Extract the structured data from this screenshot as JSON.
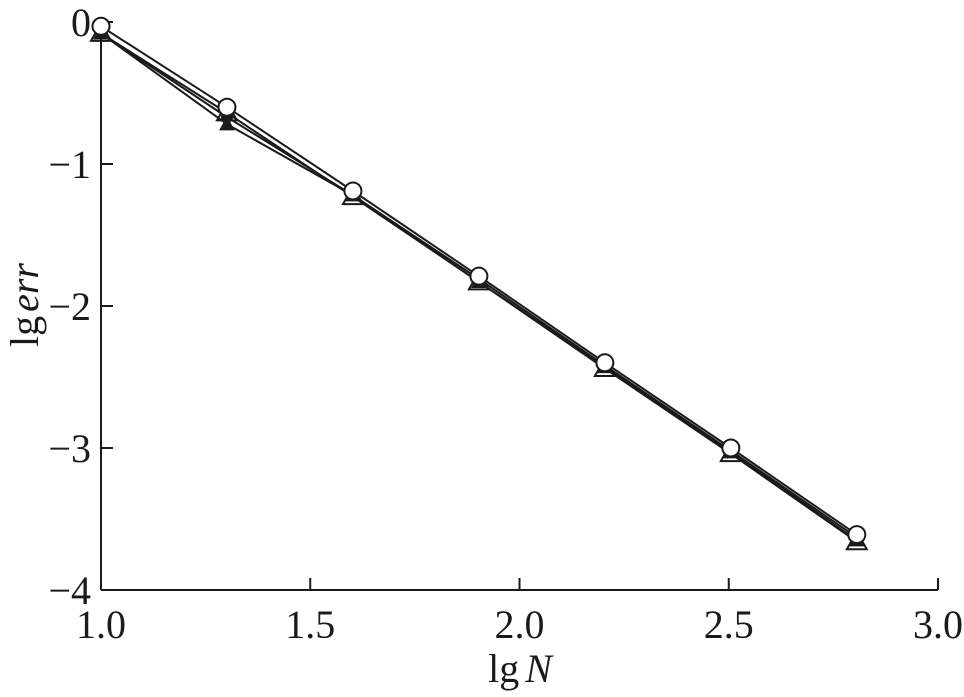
{
  "chart_data": {
    "type": "line",
    "title": "",
    "xlabel": {
      "prefix": "lg",
      "var": "N"
    },
    "ylabel": {
      "prefix": "lg",
      "var": "err"
    },
    "xlim": [
      1.0,
      3.0
    ],
    "ylim": [
      -4,
      0
    ],
    "xticks": [
      1.0,
      1.5,
      2.0,
      2.5,
      3.0
    ],
    "xtick_labels": [
      "1.0",
      "1.5",
      "2.0",
      "2.5",
      "3.0"
    ],
    "yticks": [
      0,
      -1,
      -2,
      -3,
      -4
    ],
    "ytick_labels": [
      "0",
      "−1",
      "−2",
      "−3",
      "−4"
    ],
    "grid": false,
    "legend": "none",
    "series": [
      {
        "marker": "open-circle",
        "x": [
          1.0,
          1.301,
          1.602,
          1.903,
          2.204,
          2.505,
          2.806
        ],
        "y": [
          -0.03,
          -0.6,
          -1.19,
          -1.79,
          -2.4,
          -3.0,
          -3.61
        ]
      },
      {
        "marker": "filled-circle",
        "x": [
          1.0,
          1.301,
          1.602,
          1.903,
          2.204,
          2.505,
          2.806
        ],
        "y": [
          -0.08,
          -0.67,
          -1.22,
          -1.81,
          -2.42,
          -3.02,
          -3.63
        ]
      },
      {
        "marker": "filled-triangle",
        "x": [
          1.0,
          1.301,
          1.602,
          1.903,
          2.204,
          2.505,
          2.806
        ],
        "y": [
          -0.08,
          -0.72,
          -1.22,
          -1.83,
          -2.43,
          -3.03,
          -3.65
        ]
      },
      {
        "marker": "open-triangle",
        "x": [
          1.0,
          1.301,
          1.602,
          1.903,
          2.204,
          2.505,
          2.806
        ],
        "y": [
          -0.08,
          -0.64,
          -1.23,
          -1.83,
          -2.44,
          -3.04,
          -3.66
        ]
      }
    ],
    "line_color": "#1a1a1a",
    "background": "#ffffff"
  }
}
